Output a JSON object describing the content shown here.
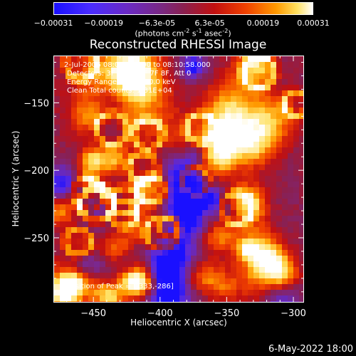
{
  "colorbar": {
    "ticks": [
      "-0.00031",
      "-0.00019",
      "-6.3e-05",
      "6.3e-05",
      "0.00019",
      "0.00031"
    ],
    "unit_main": "(photons cm",
    "unit_sup1": "-2",
    "unit_mid1": " s",
    "unit_sup2": "-1",
    "unit_mid2": " asec",
    "unit_sup3": "-2",
    "unit_end": ")"
  },
  "info": {
    "line1": "2-Jul-2006 08:04:58.000 to 08:10:58.000",
    "line2": "Detectors: 3F 4F 5F 6F 7F 8F, Att 0",
    "line3": "Energy Range: 25.0 - 50.0 keV",
    "line4": "Clean    Total counts: 1.31E+04",
    "peak": "Position of Peak = [-333,-286]"
  },
  "timestamp": "6-May-2022 18:00",
  "chart_data": {
    "type": "heatmap",
    "title": "Reconstructed RHESSI Image",
    "xlabel": "Heliocentric X (arcsec)",
    "ylabel": "Heliocentric Y (arcsec)",
    "xlim": [
      -480,
      -292
    ],
    "ylim": [
      -298,
      -115
    ],
    "x_ticks": [
      -450,
      -400,
      -350,
      -300
    ],
    "y_ticks": [
      -150,
      -200,
      -250
    ],
    "x_tick_labels": [
      "−450",
      "−400",
      "−350",
      "−300"
    ],
    "y_tick_labels": [
      "−150",
      "−200",
      "−250"
    ],
    "colorbar_range": [
      -0.00031,
      0.00031
    ],
    "colormap": [
      "#1a10ff",
      "#5a2ae0",
      "#7a2890",
      "#8a2050",
      "#c21010",
      "#f04000",
      "#ff9a00",
      "#ffe060",
      "#ffffff"
    ],
    "peak_position": [
      -333,
      -286
    ]
  }
}
